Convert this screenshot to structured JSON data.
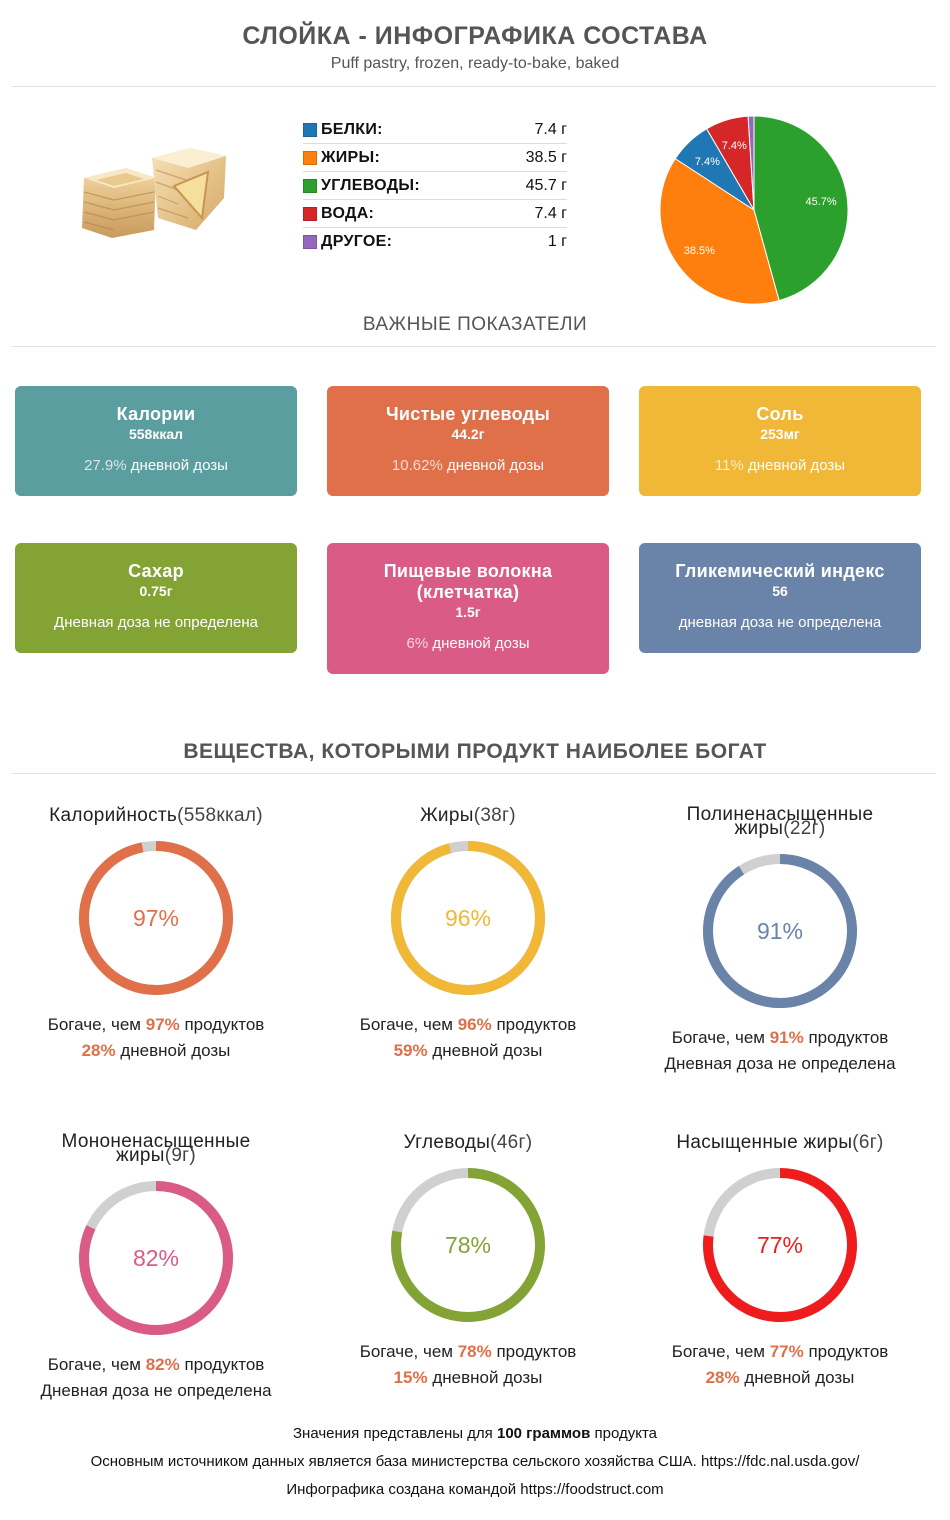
{
  "header": {
    "title": "СЛОЙКА - ИНФОГРАФИКА СОСТАВА",
    "subtitle": "Puff pastry, frozen, ready-to-bake, baked"
  },
  "macros": [
    {
      "label": "БЕЛКИ:",
      "value": "7.4 г",
      "color": "#1f77b4"
    },
    {
      "label": "ЖИРЫ:",
      "value": "38.5 г",
      "color": "#ff7f0e"
    },
    {
      "label": "УГЛЕВОДЫ:",
      "value": "45.7 г",
      "color": "#2ca02c"
    },
    {
      "label": "ВОДА:",
      "value": "7.4 г",
      "color": "#d62728"
    },
    {
      "label": "ДРУГОЕ:",
      "value": "1 г",
      "color": "#9467bd"
    }
  ],
  "chart_data": {
    "type": "pie",
    "slices": [
      {
        "name": "Углеводы",
        "value": 45.7,
        "label": "45.7%",
        "color": "#2ca02c"
      },
      {
        "name": "Жиры",
        "value": 38.5,
        "label": "38.5%",
        "color": "#ff7f0e"
      },
      {
        "name": "Белки",
        "value": 7.4,
        "label": "7.4%",
        "color": "#1f77b4"
      },
      {
        "name": "Вода",
        "value": 7.4,
        "label": "7.4%",
        "color": "#d62728"
      },
      {
        "name": "Другое",
        "value": 1,
        "label": "",
        "color": "#9467bd"
      }
    ]
  },
  "sections": {
    "important": "ВАЖНЫЕ ПОКАЗАТЕЛИ",
    "rich": "ВЕЩЕСТВА, КОТОРЫМИ ПРОДУКТ НАИБОЛЕЕ БОГАТ"
  },
  "cards": [
    {
      "title": "Калории",
      "value": "558ккал",
      "dv_pct": "27.9%",
      "dv_text": " дневной дозы",
      "color": "#5b9ea0"
    },
    {
      "title": "Чистые углеводы",
      "value": "44.2г",
      "dv_pct": "10.62%",
      "dv_text": " дневной дозы",
      "color": "#e07049"
    },
    {
      "title": "Соль",
      "value": "253мг",
      "dv_pct": "11%",
      "dv_text": " дневной дозы",
      "color": "#f1b736"
    },
    {
      "title": "Сахар",
      "value": "0.75г",
      "dv_pct": "",
      "dv_text": "Дневная доза не определена",
      "color": "#84a335"
    },
    {
      "title": "Пищевые волокна (клетчатка)",
      "value": "1.5г",
      "dv_pct": "6%",
      "dv_text": " дневной дозы",
      "color": "#d95b86"
    },
    {
      "title": "Гликемический индекс",
      "value": "56",
      "dv_pct": "",
      "dv_text": "дневная доза не определена",
      "color": "#6a83a8"
    }
  ],
  "rings": [
    {
      "name": "Калорийность",
      "amount": "(558ккал)",
      "percent": 97,
      "label": "97%",
      "color": "#e07049",
      "richer_pre": "Богаче, чем ",
      "richer_pct": "97%",
      "richer_post": " продуктов",
      "dv_pct": "28%",
      "dv_text": " дневной дозы"
    },
    {
      "name": "Жиры",
      "amount": "(38г)",
      "percent": 96,
      "label": "96%",
      "color": "#f1b736",
      "richer_pre": "Богаче, чем ",
      "richer_pct": "96%",
      "richer_post": " продуктов",
      "dv_pct": "59%",
      "dv_text": " дневной дозы"
    },
    {
      "name": "Полиненасыщенные жиры",
      "amount": "(22г)",
      "percent": 91,
      "label": "91%",
      "color": "#6a83a8",
      "richer_pre": "Богаче, чем ",
      "richer_pct": "91%",
      "richer_post": " продуктов",
      "dv_pct": "",
      "dv_text": "Дневная доза не определена"
    },
    {
      "name": "Мононенасыщенные жиры",
      "amount": "(9г)",
      "percent": 82,
      "label": "82%",
      "color": "#d95b86",
      "richer_pre": "Богаче, чем ",
      "richer_pct": "82%",
      "richer_post": " продуктов",
      "dv_pct": "",
      "dv_text": "Дневная доза не определена"
    },
    {
      "name": "Углеводы",
      "amount": "(46г)",
      "percent": 78,
      "label": "78%",
      "color": "#84a335",
      "richer_pre": "Богаче, чем ",
      "richer_pct": "78%",
      "richer_post": " продуктов",
      "dv_pct": "15%",
      "dv_text": " дневной дозы"
    },
    {
      "name": "Насыщенные жиры",
      "amount": "(6г)",
      "percent": 77,
      "label": "77%",
      "color": "#ee1c1c",
      "richer_pre": "Богаче, чем ",
      "richer_pct": "77%",
      "richer_post": " продуктов",
      "dv_pct": "28%",
      "dv_text": " дневной дозы"
    }
  ],
  "footer": {
    "line1_pre": "Значения представлены для ",
    "line1_bold": "100 граммов",
    "line1_post": " продукта",
    "line2": "Основным источником данных является база министерства сельского хозяйства США. https://fdc.nal.usda.gov/",
    "line3": "Инфографика создана командой https://foodstruct.com"
  },
  "colors": {
    "highlight": "#e07049",
    "ring_track": "#d0d0d0"
  }
}
